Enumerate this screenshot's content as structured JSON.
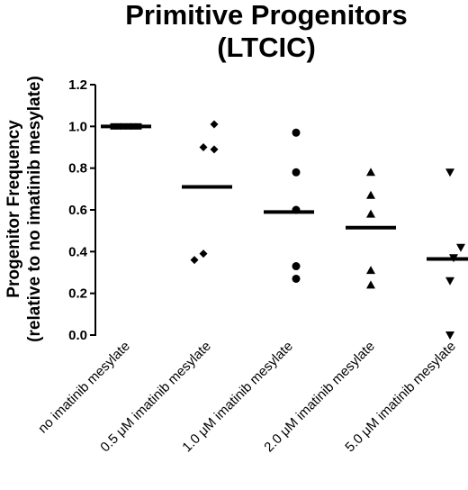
{
  "chart_data": {
    "type": "scatter",
    "title": [
      "Primitive Progenitors",
      "(LTCIC)"
    ],
    "ylabel": [
      "Progenitor Frequency",
      "(relative to no imatinib mesylate)"
    ],
    "ylim": [
      0.0,
      1.2
    ],
    "yticks": [
      "0.0",
      "0.2",
      "0.4",
      "0.6",
      "0.8",
      "1.0",
      "1.2"
    ],
    "grid": false,
    "categories": [
      "no imatinib mesylate",
      "0.5 μM imatinib mesylate",
      "1.0 μM imatinib mesylate",
      "2.0 μM imatinib mesylate",
      "5.0 μM imatinib mesylate"
    ],
    "series": [
      {
        "marker": "square",
        "points": [
          1.0,
          1.0,
          1.0,
          1.0,
          1.0,
          1.0
        ],
        "mean": 1.0
      },
      {
        "marker": "diamond",
        "points": [
          1.01,
          0.9,
          0.89,
          0.39,
          0.36
        ],
        "mean": 0.71
      },
      {
        "marker": "circle",
        "points": [
          0.97,
          0.78,
          0.6,
          0.33,
          0.27
        ],
        "mean": 0.59
      },
      {
        "marker": "triangle-up",
        "points": [
          0.78,
          0.67,
          0.58,
          0.31,
          0.24
        ],
        "mean": 0.515
      },
      {
        "marker": "triangle-down",
        "points": [
          0.78,
          0.42,
          0.37,
          0.26,
          0.0
        ],
        "mean": 0.365
      }
    ]
  }
}
